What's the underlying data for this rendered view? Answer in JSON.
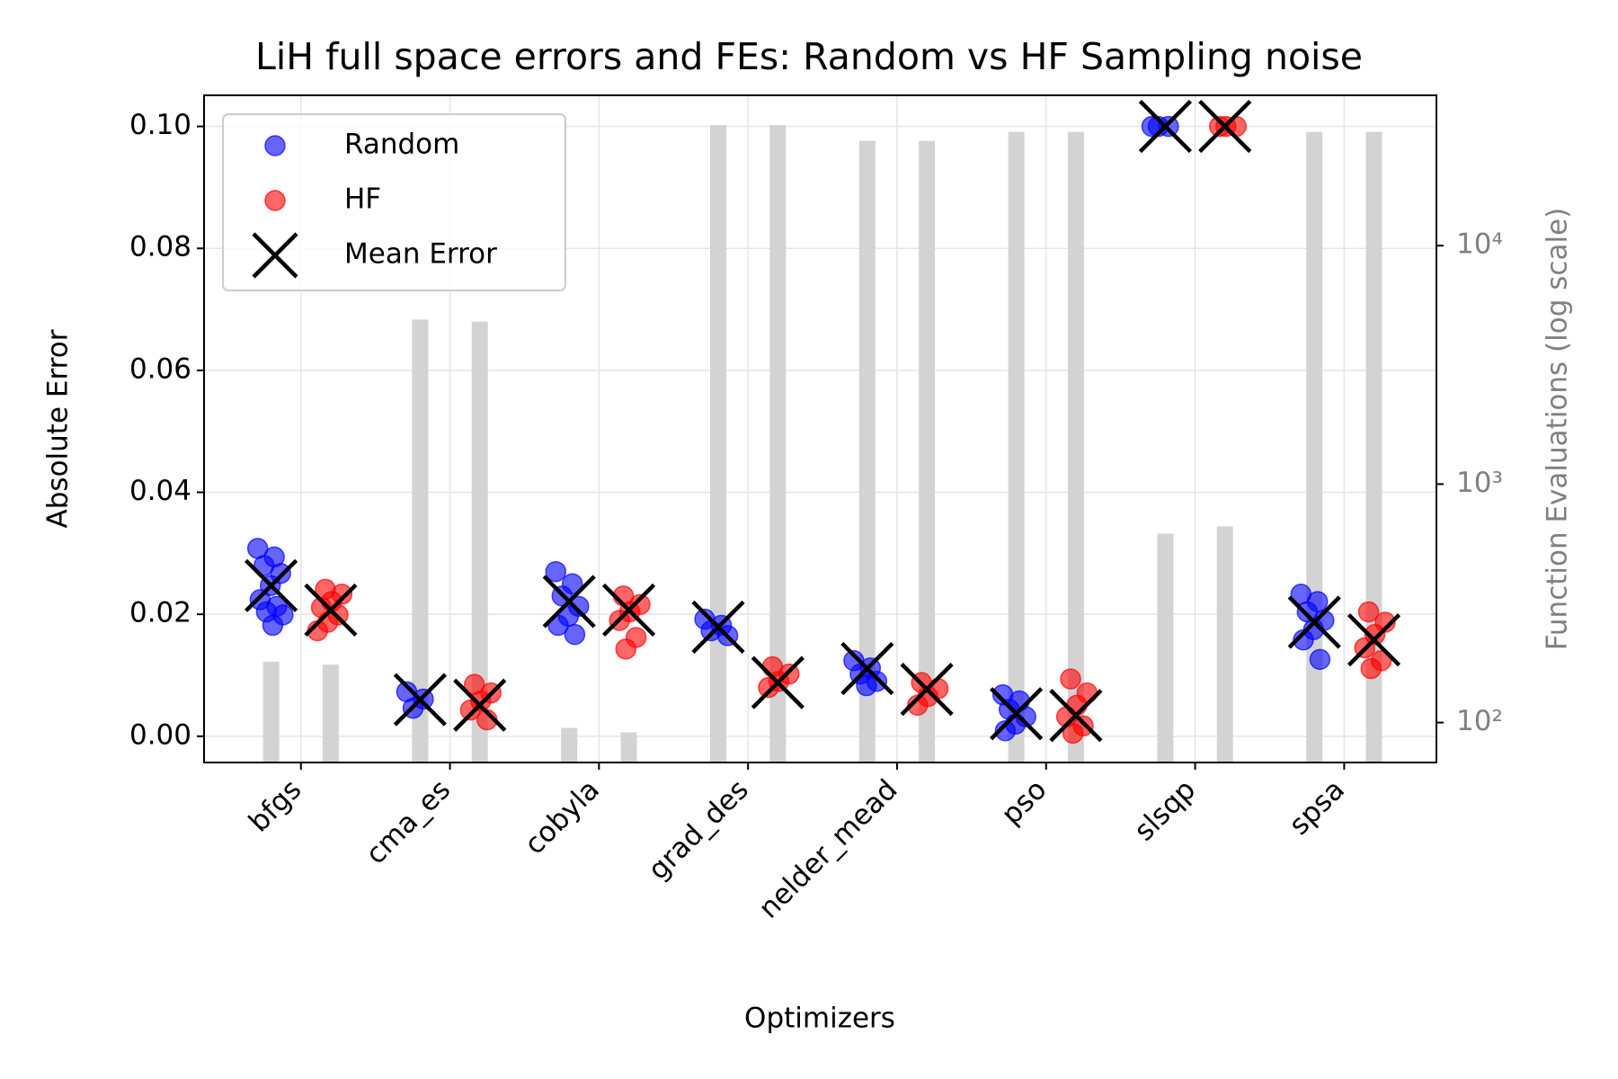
{
  "chart_data": {
    "type": "strip_bar",
    "title": "LiH full space errors and FEs: Random vs HF Sampling noise",
    "x_label": "Optimizers",
    "y_label": "Absolute Error",
    "y2_label": "Function Evaluations (log scale)",
    "categories": [
      "bfgs",
      "cma_es",
      "cobyla",
      "grad_des",
      "nelder_mead",
      "pso",
      "slsqp",
      "spsa"
    ],
    "ylim": [
      -0.0043,
      0.1051
    ],
    "yticks": [
      {
        "value": 0,
        "label": "0.00"
      },
      {
        "value": 0.02,
        "label": "0.02"
      },
      {
        "value": 0.04,
        "label": "0.04"
      },
      {
        "value": 0.06,
        "label": "0.06"
      },
      {
        "value": 0.08,
        "label": "0.08"
      },
      {
        "value": 0.1,
        "label": "0.10"
      }
    ],
    "y2lim": [
      68,
      42700
    ],
    "y2_log": true,
    "y2ticks": [
      {
        "value": 100,
        "label": "10²"
      },
      {
        "value": 1000,
        "label": "10³"
      },
      {
        "value": 10000,
        "label": "10⁴"
      }
    ],
    "grid": true,
    "legend_position": "upper left",
    "mean_label": "Mean Error",
    "mean_color": "#000000",
    "bar_color": "#d3d3d3",
    "series": [
      {
        "name": "Random",
        "color": "#0000ff",
        "values": [
          [
            0.0308,
            0.0294,
            0.028,
            0.0267,
            0.0247,
            0.0224,
            0.0213,
            0.0204,
            0.0199,
            0.0182
          ],
          [
            0.0073,
            0.0061,
            0.0046
          ],
          [
            0.027,
            0.025,
            0.023,
            0.0213,
            0.0197,
            0.0182,
            0.0167
          ],
          [
            0.0192,
            0.0182,
            0.0173,
            0.0165
          ],
          [
            0.0124,
            0.0112,
            0.0102,
            0.009,
            0.0083
          ],
          [
            0.0068,
            0.0058,
            0.0044,
            0.0032,
            0.002,
            0.0009
          ],
          [
            0.1,
            0.1,
            0.1
          ],
          [
            0.0233,
            0.0221,
            0.0204,
            0.019,
            0.0175,
            0.0158,
            0.0126
          ]
        ],
        "means": [
          0.0247,
          0.006,
          0.0221,
          0.0179,
          0.0111,
          0.0037,
          0.1,
          0.0187
        ],
        "fevals": [
          180,
          4900,
          95,
          32000,
          27500,
          30000,
          620,
          30000
        ]
      },
      {
        "name": "HF",
        "color": "#ff0000",
        "values": [
          [
            0.0241,
            0.0233,
            0.0221,
            0.0211,
            0.0199,
            0.0187,
            0.0173
          ],
          [
            0.0085,
            0.0071,
            0.0058,
            0.0043,
            0.0027
          ],
          [
            0.023,
            0.0216,
            0.0204,
            0.019,
            0.0162,
            0.0143
          ],
          [
            0.0114,
            0.0102,
            0.009,
            0.008
          ],
          [
            0.0088,
            0.0078,
            0.0065,
            0.0051
          ],
          [
            0.0094,
            0.0071,
            0.0051,
            0.0032,
            0.0017,
            0.0005
          ],
          [
            0.1,
            0.1,
            0.1
          ],
          [
            0.0204,
            0.0187,
            0.0167,
            0.0145,
            0.0124,
            0.0111
          ]
        ],
        "means": [
          0.0207,
          0.0051,
          0.0207,
          0.0088,
          0.0077,
          0.0034,
          0.1,
          0.0158
        ],
        "fevals": [
          175,
          4800,
          91,
          32000,
          27500,
          30000,
          665,
          30000
        ]
      }
    ]
  }
}
